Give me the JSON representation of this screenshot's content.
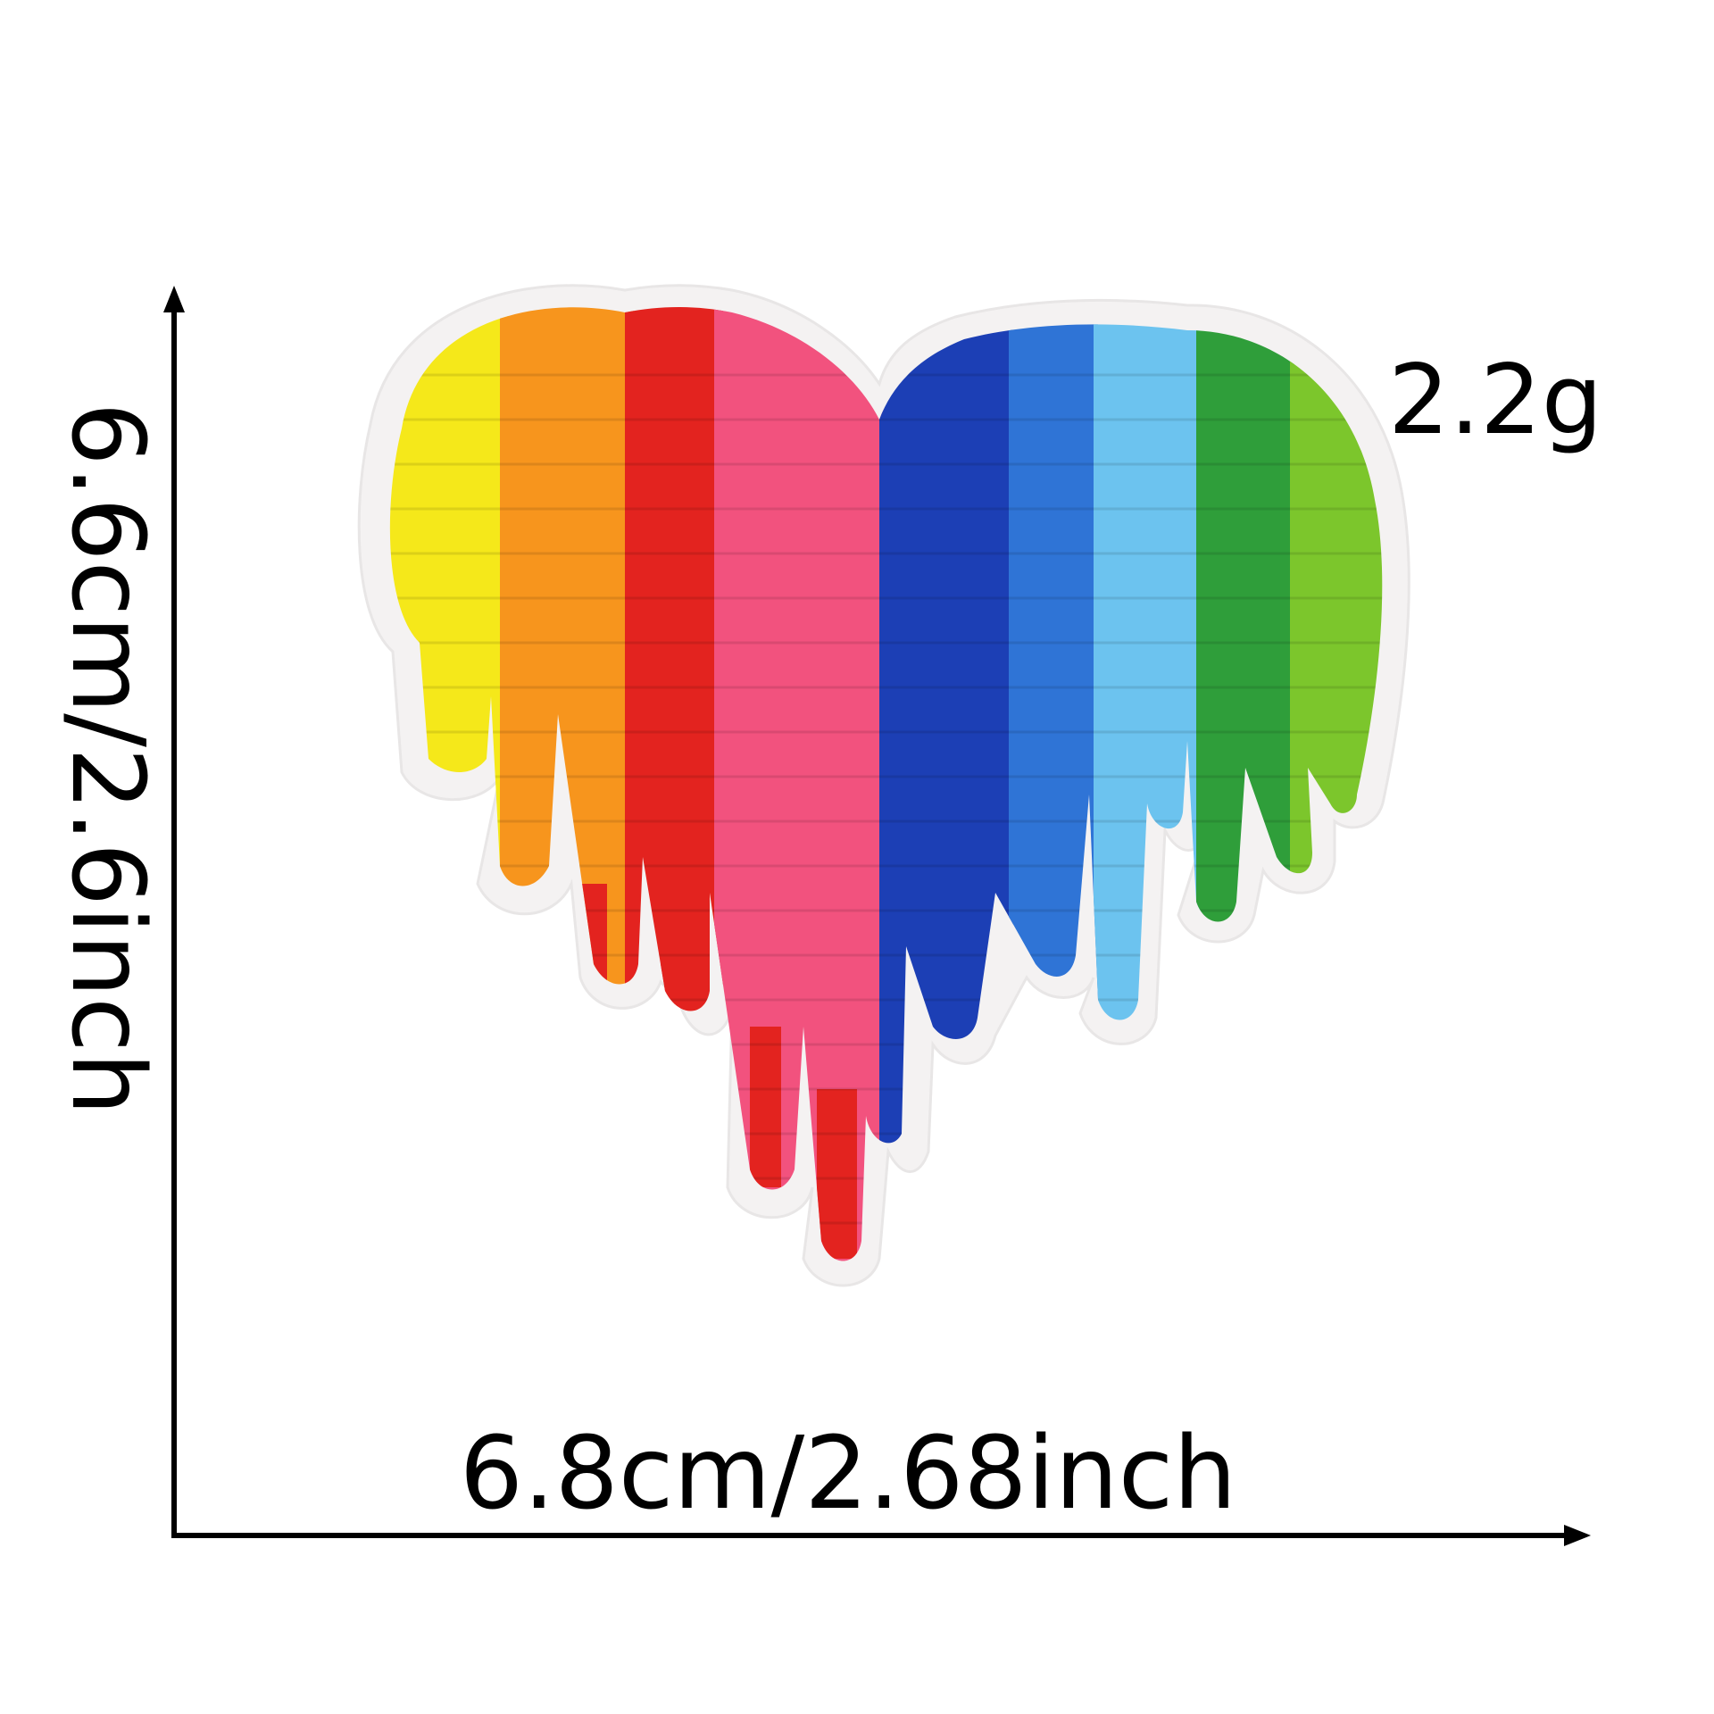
{
  "product": {
    "description_colors": {
      "yellow": "#f5e81a",
      "orange": "#f7951d",
      "red": "#e3231f",
      "pink": "#f2527e",
      "navy_blue": "#1c3fb5",
      "royal_blue": "#2f74d6",
      "light_blue": "#6cc3ef",
      "dark_green": "#2f9e3a",
      "lime_green": "#7cc62c",
      "felt_border": "#f4f2f2"
    },
    "icon": "rainbow-dripping-heart-patch"
  },
  "dimensions": {
    "weight": "2.2g",
    "width": "6.8cm/2.68inch",
    "height": "6.6cm/2.6inch"
  },
  "axes": {
    "arrow_color": "#000000"
  }
}
